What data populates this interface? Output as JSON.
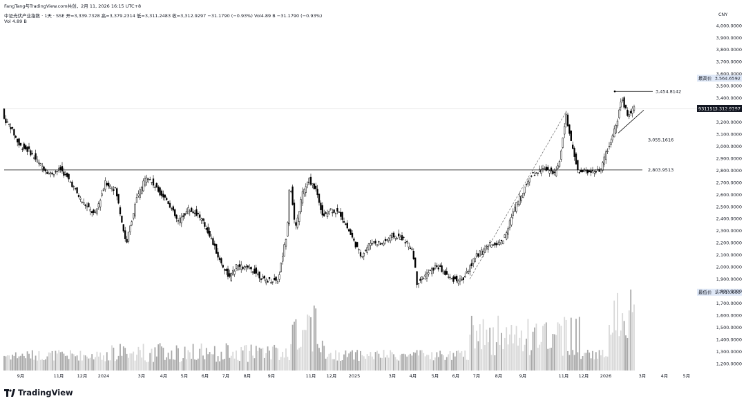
{
  "header": {
    "author_line": "FangTang与TradingView.com共创，2月 11, 2026 16:15 UTC+8",
    "symbol_line": "中证光伏产业指数 · 1天 · SSE  开=3,339.7328  高=3,379.2314  低=3,311.2483  收=3,312.9297  −31.1790 (−0.93%)  Vol4.89 B  −31.1790 (−0.93%)",
    "volume_line": "Vol  4.89 B",
    "currency": "CNY"
  },
  "footer": {
    "brand": "TradingView"
  },
  "colors": {
    "candle": "#000000",
    "volume": "#b0b0b0",
    "axis_text": "#131722"
  },
  "chart_data": {
    "type": "candlestick",
    "ylim": [
      1200,
      4000
    ],
    "y_ticks": [
      "4,000.0000",
      "3,900.0000",
      "3,800.0000",
      "3,700.0000",
      "3,600.0000",
      "3,500.0000",
      "3,400.0000",
      "3,300.0000",
      "3,200.0000",
      "3,100.0000",
      "3,000.0000",
      "2,900.0000",
      "2,800.0000",
      "2,700.0000",
      "2,600.0000",
      "2,500.0000",
      "2,400.0000",
      "2,300.0000",
      "2,200.0000",
      "2,100.0000",
      "2,000.0000",
      "1,900.0000",
      "1,800.0000",
      "1,700.0000",
      "1,600.0000",
      "1,500.0000",
      "1,400.0000",
      "1,300.0000",
      "1,200.0000"
    ],
    "x_ticks": [
      "9月",
      "11月",
      "12月",
      "2024",
      "3月",
      "4月",
      "5月",
      "6月",
      "7月",
      "8月",
      "9月",
      "11月",
      "12月",
      "2025",
      "3月",
      "4月",
      "5月",
      "6月",
      "7月",
      "8月",
      "9月",
      "11月",
      "12月",
      "2026",
      "3月",
      "4月",
      "5月"
    ],
    "price_path": [
      [
        0,
        3560
      ],
      [
        8,
        3230
      ],
      [
        18,
        3160
      ],
      [
        30,
        3010
      ],
      [
        45,
        2960
      ],
      [
        60,
        2850
      ],
      [
        75,
        2770
      ],
      [
        90,
        2810
      ],
      [
        105,
        2700
      ],
      [
        120,
        2550
      ],
      [
        140,
        2430
      ],
      [
        155,
        2700
      ],
      [
        170,
        2640
      ],
      [
        185,
        2190
      ],
      [
        200,
        2560
      ],
      [
        215,
        2760
      ],
      [
        230,
        2640
      ],
      [
        245,
        2550
      ],
      [
        260,
        2370
      ],
      [
        275,
        2480
      ],
      [
        290,
        2430
      ],
      [
        305,
        2280
      ],
      [
        320,
        2060
      ],
      [
        335,
        1910
      ],
      [
        345,
        2010
      ],
      [
        360,
        1990
      ],
      [
        370,
        1970
      ],
      [
        385,
        1890
      ],
      [
        405,
        1890
      ],
      [
        418,
        2300
      ],
      [
        422,
        2730
      ],
      [
        430,
        2300
      ],
      [
        440,
        2610
      ],
      [
        450,
        2720
      ],
      [
        460,
        2640
      ],
      [
        470,
        2420
      ],
      [
        480,
        2480
      ],
      [
        495,
        2440
      ],
      [
        510,
        2270
      ],
      [
        525,
        2090
      ],
      [
        540,
        2210
      ],
      [
        555,
        2190
      ],
      [
        570,
        2260
      ],
      [
        585,
        2240
      ],
      [
        600,
        2140
      ],
      [
        606,
        1870
      ],
      [
        618,
        1930
      ],
      [
        635,
        2010
      ],
      [
        655,
        1900
      ],
      [
        672,
        1890
      ],
      [
        690,
        2080
      ],
      [
        710,
        2180
      ],
      [
        730,
        2210
      ],
      [
        750,
        2520
      ],
      [
        770,
        2750
      ],
      [
        790,
        2830
      ],
      [
        805,
        2760
      ],
      [
        812,
        2870
      ],
      [
        822,
        3260
      ],
      [
        830,
        3000
      ],
      [
        840,
        2780
      ],
      [
        855,
        2800
      ],
      [
        870,
        2790
      ],
      [
        885,
        3020
      ],
      [
        895,
        3180
      ],
      [
        902,
        3400
      ],
      [
        912,
        3250
      ],
      [
        918,
        3312.93
      ]
    ],
    "series": [
      {
        "name": "中证光伏产业指数",
        "values": [
          3312.93
        ]
      }
    ],
    "volume_stats": {
      "max_vol_label": "1,791.0600"
    },
    "annotations": {
      "price_labels": [
        {
          "value": 3454.8142,
          "text": "3,454.8142"
        },
        {
          "value": 3055.1616,
          "text": "3,055.1616"
        },
        {
          "value": 2803.9513,
          "text": "2,803.9513"
        }
      ],
      "badges": [
        {
          "label": "最高价",
          "value": "3,564.6592",
          "price": 3564.66
        },
        {
          "label": "931151",
          "value": "3,312.9297",
          "price": 3312.93
        },
        {
          "label": "最低价",
          "value": "1,791.0600",
          "price": 1791.06
        }
      ]
    }
  }
}
